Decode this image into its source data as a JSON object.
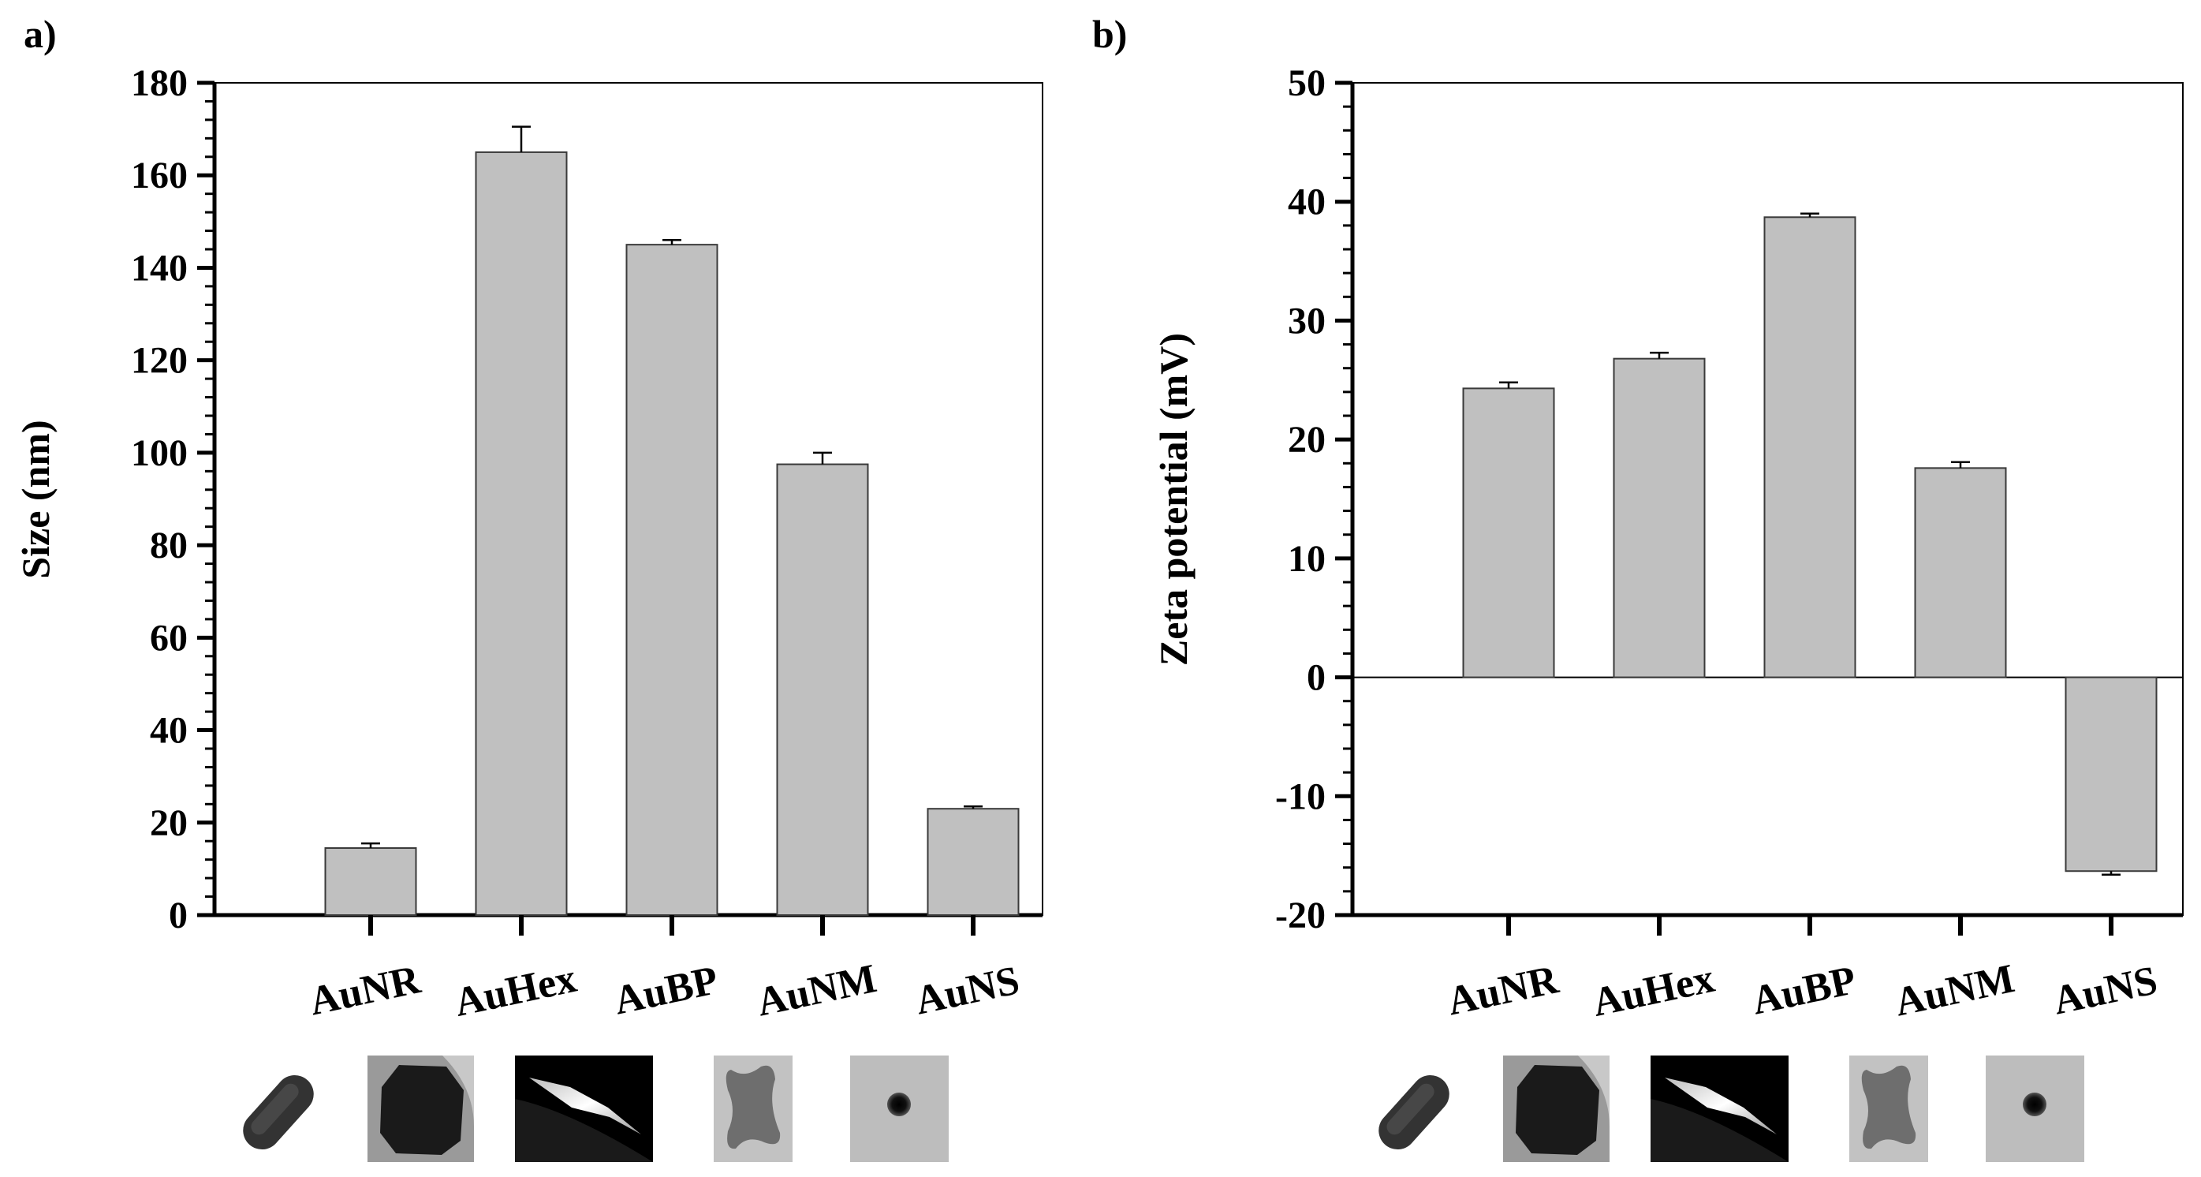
{
  "figure": {
    "panels": [
      "a)",
      "b)"
    ]
  },
  "colors": {
    "bar_fill": "#c0c0c0",
    "bar_stroke": "#3a3a3a",
    "axis": "#000000"
  },
  "chart_data": [
    {
      "type": "bar",
      "panel": "a)",
      "title": "",
      "xlabel": "",
      "ylabel": "Size (nm)",
      "categories": [
        "AuNR",
        "AuHex",
        "AuBP",
        "AuNM",
        "AuNS"
      ],
      "values": [
        14.5,
        165,
        145,
        97.5,
        23
      ],
      "errors": [
        1,
        5.5,
        1,
        2.5,
        0.5
      ],
      "ylim": [
        0,
        180
      ],
      "yticks": [
        0,
        20,
        40,
        60,
        80,
        100,
        120,
        140,
        160,
        180
      ],
      "grid": false,
      "legend": "none"
    },
    {
      "type": "bar",
      "panel": "b)",
      "title": "",
      "xlabel": "",
      "ylabel": "Zeta potential (mV)",
      "categories": [
        "AuNR",
        "AuHex",
        "AuBP",
        "AuNM",
        "AuNS"
      ],
      "values": [
        24.3,
        26.8,
        38.7,
        17.6,
        -16.3
      ],
      "errors": [
        0.5,
        0.5,
        0.3,
        0.5,
        0.3
      ],
      "ylim": [
        -20,
        50
      ],
      "yticks": [
        -20,
        -10,
        0,
        10,
        20,
        30,
        40,
        50
      ],
      "grid": false,
      "legend": "none"
    }
  ]
}
